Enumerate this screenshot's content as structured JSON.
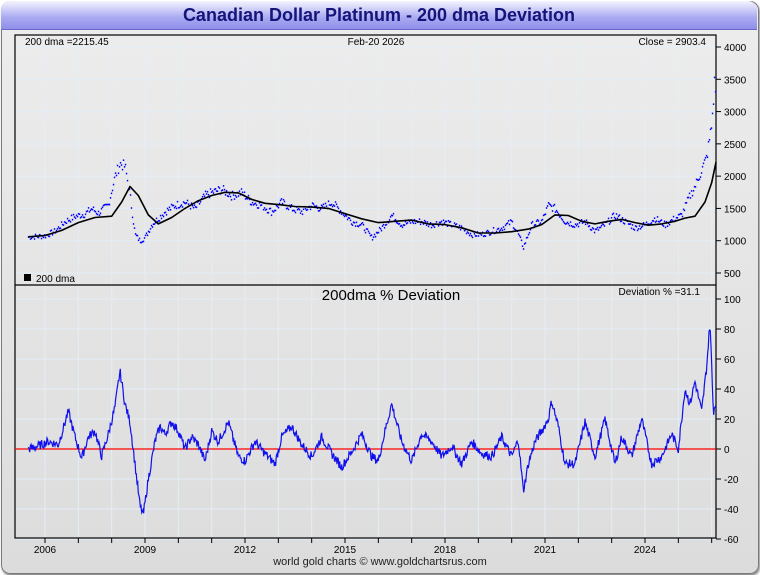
{
  "title": "Canadian Dollar Platinum - 200 dma Deviation",
  "footer": "world gold charts © www.goldchartsrus.com",
  "colors": {
    "price": "#0000ff",
    "dma": "#000000",
    "deviation": "#1010ee",
    "zero_line": "#ff0000",
    "grid": "#e3eef8"
  },
  "chart_data": [
    {
      "type": "line",
      "title": "",
      "header": {
        "left": "200 dma =2215.45",
        "center": "Feb-20  2026",
        "right": "Close = 2903.4"
      },
      "legend": {
        "label": "200 dma",
        "placement": "bottom-left"
      },
      "ylim": [
        300,
        4100
      ],
      "yticks": [
        500,
        1000,
        1500,
        2000,
        2500,
        3000,
        3500,
        4000
      ],
      "xlim": [
        2005.5,
        2026.2
      ],
      "series": [
        {
          "name": "Close",
          "style": "dots",
          "x": [
            2005.5,
            2006.0,
            2006.3,
            2006.6,
            2006.9,
            2007.2,
            2007.4,
            2007.6,
            2007.9,
            2008.1,
            2008.25,
            2008.4,
            2008.55,
            2008.7,
            2008.85,
            2009.0,
            2009.2,
            2009.4,
            2009.6,
            2009.9,
            2010.2,
            2010.5,
            2010.8,
            2011.0,
            2011.3,
            2011.6,
            2011.9,
            2012.2,
            2012.5,
            2012.8,
            2013.1,
            2013.4,
            2013.7,
            2014.0,
            2014.3,
            2014.6,
            2014.9,
            2015.2,
            2015.5,
            2015.8,
            2016.1,
            2016.4,
            2016.7,
            2017.0,
            2017.3,
            2017.6,
            2017.9,
            2018.2,
            2018.5,
            2018.8,
            2019.1,
            2019.4,
            2019.7,
            2020.0,
            2020.2,
            2020.35,
            2020.6,
            2020.9,
            2021.1,
            2021.3,
            2021.6,
            2021.9,
            2022.2,
            2022.5,
            2022.8,
            2023.1,
            2023.4,
            2023.7,
            2024.0,
            2024.3,
            2024.6,
            2024.9,
            2025.1,
            2025.3,
            2025.5,
            2025.7,
            2025.85,
            2026.0,
            2026.1,
            2026.13
          ],
          "y": [
            1060,
            1080,
            1150,
            1300,
            1380,
            1420,
            1500,
            1430,
            1560,
            2000,
            2200,
            2150,
            1700,
            1100,
            1000,
            1050,
            1250,
            1350,
            1450,
            1550,
            1600,
            1500,
            1700,
            1750,
            1800,
            1700,
            1750,
            1600,
            1550,
            1450,
            1600,
            1500,
            1450,
            1550,
            1500,
            1600,
            1450,
            1300,
            1250,
            1050,
            1200,
            1400,
            1250,
            1300,
            1300,
            1250,
            1300,
            1250,
            1200,
            1100,
            1100,
            1150,
            1200,
            1300,
            1100,
            900,
            1250,
            1300,
            1550,
            1500,
            1300,
            1250,
            1300,
            1150,
            1250,
            1400,
            1300,
            1200,
            1250,
            1350,
            1250,
            1350,
            1400,
            1650,
            1850,
            2100,
            2300,
            2800,
            3600,
            2903.4
          ]
        },
        {
          "name": "200 dma",
          "style": "line",
          "x": [
            2005.5,
            2006.0,
            2006.5,
            2007.0,
            2007.5,
            2008.0,
            2008.3,
            2008.55,
            2008.8,
            2009.1,
            2009.4,
            2009.8,
            2010.2,
            2010.6,
            2011.0,
            2011.4,
            2011.8,
            2012.2,
            2012.6,
            2013.0,
            2013.5,
            2014.0,
            2014.5,
            2015.0,
            2015.5,
            2016.0,
            2016.5,
            2017.0,
            2017.5,
            2018.0,
            2018.5,
            2019.0,
            2019.5,
            2020.0,
            2020.5,
            2020.9,
            2021.3,
            2021.7,
            2022.1,
            2022.5,
            2022.9,
            2023.3,
            2023.7,
            2024.1,
            2024.5,
            2024.9,
            2025.2,
            2025.5,
            2025.8,
            2026.0,
            2026.13
          ],
          "y": [
            1060,
            1080,
            1160,
            1280,
            1360,
            1380,
            1600,
            1840,
            1700,
            1400,
            1260,
            1360,
            1500,
            1620,
            1700,
            1750,
            1740,
            1640,
            1580,
            1560,
            1530,
            1520,
            1500,
            1420,
            1340,
            1280,
            1300,
            1320,
            1260,
            1250,
            1200,
            1120,
            1120,
            1140,
            1180,
            1250,
            1400,
            1390,
            1300,
            1260,
            1300,
            1330,
            1280,
            1240,
            1260,
            1300,
            1350,
            1380,
            1600,
            1900,
            2215.45
          ]
        }
      ]
    },
    {
      "type": "line",
      "title": "200dma  %  Deviation",
      "header": {
        "right": "Deviation % =31.1"
      },
      "ylim": [
        -60,
        100
      ],
      "yticks": [
        -60,
        -40,
        -20,
        0,
        20,
        40,
        60,
        80,
        100
      ],
      "xlim": [
        2005.5,
        2026.2
      ],
      "xticks": [
        2006,
        2009,
        2012,
        2015,
        2018,
        2021,
        2024
      ],
      "series": [
        {
          "name": "Deviation %",
          "x": [
            2005.5,
            2005.8,
            2006.1,
            2006.4,
            2006.7,
            2006.9,
            2007.1,
            2007.3,
            2007.5,
            2007.7,
            2007.9,
            2008.1,
            2008.25,
            2008.4,
            2008.55,
            2008.7,
            2008.85,
            2008.95,
            2009.1,
            2009.3,
            2009.45,
            2009.6,
            2009.8,
            2010.0,
            2010.2,
            2010.4,
            2010.6,
            2010.8,
            2011.0,
            2011.2,
            2011.5,
            2011.8,
            2012.0,
            2012.3,
            2012.6,
            2012.9,
            2013.1,
            2013.4,
            2013.7,
            2014.0,
            2014.3,
            2014.6,
            2014.9,
            2015.2,
            2015.5,
            2015.8,
            2016.0,
            2016.2,
            2016.4,
            2016.7,
            2017.0,
            2017.3,
            2017.6,
            2017.9,
            2018.2,
            2018.5,
            2018.8,
            2019.1,
            2019.4,
            2019.7,
            2020.0,
            2020.2,
            2020.35,
            2020.5,
            2020.7,
            2020.9,
            2021.1,
            2021.2,
            2021.4,
            2021.6,
            2021.9,
            2022.2,
            2022.5,
            2022.8,
            2023.1,
            2023.3,
            2023.6,
            2023.9,
            2024.2,
            2024.5,
            2024.8,
            2025.0,
            2025.2,
            2025.35,
            2025.5,
            2025.7,
            2025.85,
            2025.95,
            2026.05,
            2026.13
          ],
          "y": [
            0,
            2,
            5,
            3,
            25,
            8,
            -6,
            8,
            12,
            -5,
            10,
            28,
            52,
            30,
            18,
            -10,
            -38,
            -44,
            -20,
            5,
            15,
            10,
            18,
            12,
            0,
            8,
            3,
            -8,
            12,
            5,
            18,
            -5,
            -8,
            5,
            -3,
            -10,
            8,
            15,
            3,
            -5,
            8,
            -3,
            -12,
            -2,
            10,
            -5,
            -8,
            12,
            30,
            5,
            -8,
            10,
            5,
            -5,
            2,
            -10,
            5,
            -3,
            -5,
            8,
            -5,
            6,
            -28,
            -10,
            5,
            12,
            20,
            32,
            15,
            -10,
            -10,
            18,
            -5,
            20,
            -10,
            8,
            -5,
            20,
            -10,
            -5,
            10,
            0,
            40,
            30,
            45,
            25,
            55,
            85,
            25,
            31.1
          ]
        }
      ],
      "reference_line": {
        "y": 0
      }
    }
  ]
}
